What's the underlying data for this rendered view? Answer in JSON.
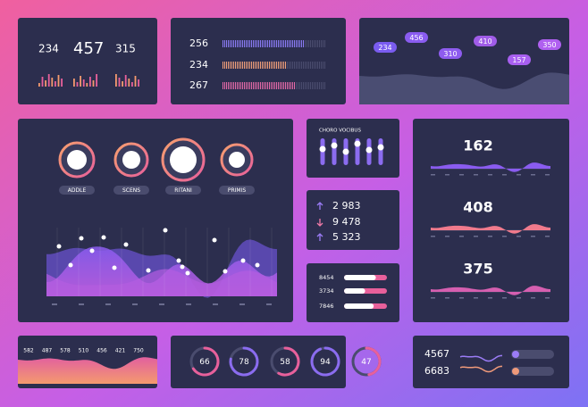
{
  "summary": {
    "values": [
      "234",
      "457",
      "315"
    ]
  },
  "bars": {
    "values": [
      "256",
      "234",
      "267"
    ]
  },
  "bubbles": {
    "values": [
      "234",
      "456",
      "310",
      "410",
      "157",
      "350"
    ]
  },
  "main": {
    "gauges": [
      {
        "value": "66",
        "label": "ADDLE"
      },
      {
        "value": "52",
        "label": "SCENS"
      },
      {
        "value": "78",
        "label": "RITANI"
      },
      {
        "value": "48",
        "label": "PRIMIS"
      }
    ]
  },
  "sliders": {
    "title": "CHORO VOCIBUS"
  },
  "changes": {
    "values": [
      "2 983",
      "9 478",
      "5 323"
    ]
  },
  "progress": {
    "values": [
      "8454",
      "3734",
      "7846"
    ]
  },
  "waves": {
    "values": [
      "162",
      "408",
      "375"
    ]
  },
  "strip": {
    "values": [
      "582",
      "487",
      "578",
      "510",
      "456",
      "421",
      "750"
    ]
  },
  "rings": {
    "values": [
      66,
      78,
      58,
      94,
      47
    ]
  },
  "lines": {
    "values": [
      "4567",
      "6683"
    ]
  }
}
